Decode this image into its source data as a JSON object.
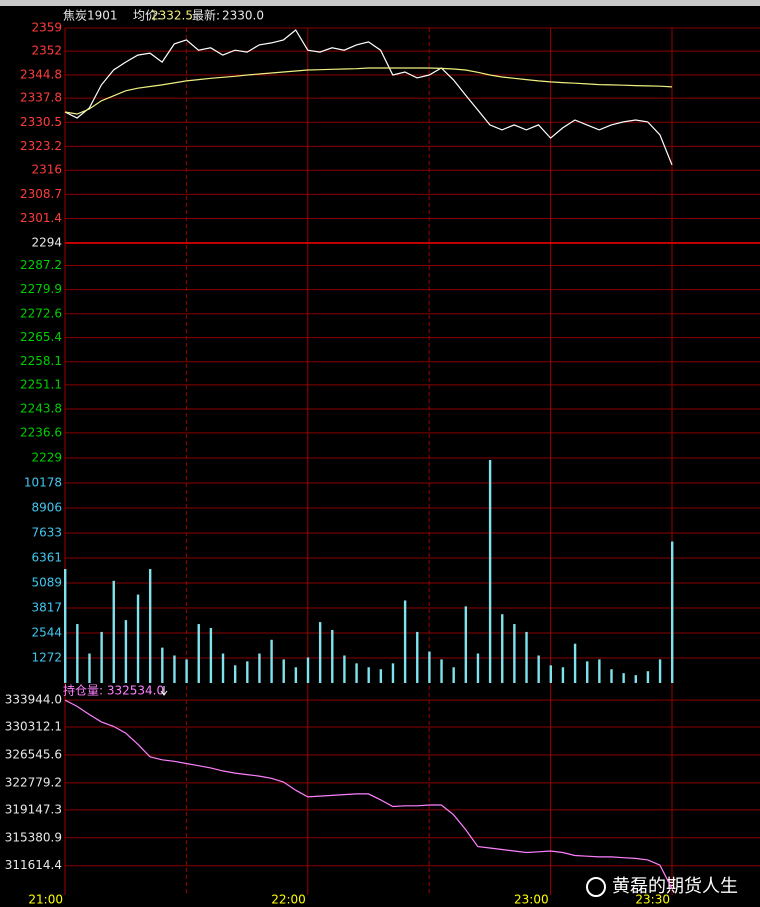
{
  "header": {
    "symbol": "焦炭1901",
    "avg_label": "均价:",
    "avg": "2332.5",
    "last_label": "最新:",
    "last": "2330.0"
  },
  "watermark": "黄磊的期货人生",
  "chart_data": [
    {
      "type": "line",
      "ylim": [
        2229,
        2359
      ],
      "yticks": [
        2359.0,
        2352.0,
        2344.8,
        2337.8,
        2330.5,
        2323.2,
        2316.0,
        2308.7,
        2301.4,
        2294.0,
        2287.2,
        2279.9,
        2272.6,
        2265.4,
        2258.1,
        2251.1,
        2243.8,
        2236.6,
        2229.0
      ],
      "tick_colors": [
        "#ff3c3c",
        "#e8e8e8",
        "#00d000"
      ],
      "x": [
        "21:00",
        "21:03",
        "21:06",
        "21:09",
        "21:12",
        "21:15",
        "21:18",
        "21:21",
        "21:24",
        "21:27",
        "21:30",
        "21:33",
        "21:36",
        "21:39",
        "21:42",
        "21:45",
        "21:48",
        "21:51",
        "21:54",
        "21:57",
        "22:00",
        "22:03",
        "22:06",
        "22:09",
        "22:12",
        "22:15",
        "22:18",
        "22:21",
        "22:24",
        "22:27",
        "22:30",
        "22:33",
        "22:36",
        "22:39",
        "22:42",
        "22:45",
        "22:48",
        "22:51",
        "22:54",
        "22:57",
        "23:00",
        "23:03",
        "23:06",
        "23:09",
        "23:12",
        "23:15",
        "23:18",
        "23:21",
        "23:24",
        "23:27",
        "23:30"
      ],
      "series": [
        {
          "color": "#ffffff",
          "values": [
            2333.6,
            2331.8,
            2334.8,
            2341.8,
            2346.3,
            2348.7,
            2350.8,
            2351.4,
            2348.7,
            2354.2,
            2355.4,
            2352.3,
            2353.0,
            2350.8,
            2352.3,
            2351.7,
            2353.9,
            2354.5,
            2355.4,
            2358.4,
            2352.3,
            2351.7,
            2353.0,
            2352.3,
            2353.9,
            2354.8,
            2352.3,
            2344.8,
            2345.7,
            2343.9,
            2344.8,
            2346.9,
            2343.3,
            2338.7,
            2334.2,
            2329.7,
            2328.2,
            2329.7,
            2328.2,
            2329.7,
            2325.7,
            2328.8,
            2331.2,
            2329.7,
            2328.2,
            2329.7,
            2330.6,
            2331.2,
            2330.6,
            2326.7,
            2317.6
          ]
        },
        {
          "color": "#f0f080",
          "values": [
            2333.6,
            2333.0,
            2334.5,
            2337.0,
            2338.5,
            2340.0,
            2340.8,
            2341.3,
            2341.8,
            2342.4,
            2343.0,
            2343.4,
            2343.8,
            2344.1,
            2344.4,
            2344.8,
            2345.1,
            2345.4,
            2345.7,
            2346.0,
            2346.3,
            2346.4,
            2346.5,
            2346.6,
            2346.7,
            2346.9,
            2346.9,
            2346.9,
            2346.9,
            2346.9,
            2346.9,
            2346.8,
            2346.6,
            2346.3,
            2345.6,
            2344.8,
            2344.2,
            2343.8,
            2343.4,
            2343.0,
            2342.7,
            2342.5,
            2342.3,
            2342.1,
            2341.9,
            2341.8,
            2341.7,
            2341.6,
            2341.5,
            2341.4,
            2341.2
          ]
        }
      ]
    },
    {
      "type": "bar",
      "ylim": [
        0,
        11450
      ],
      "yticks": [
        1272,
        2544,
        3817,
        5089,
        6361,
        7633,
        8906,
        10178
      ],
      "tick_colors": [
        "#40c8f0"
      ],
      "color": "#7fe3ee",
      "x": [
        "21:00",
        "21:03",
        "21:06",
        "21:09",
        "21:12",
        "21:15",
        "21:18",
        "21:21",
        "21:24",
        "21:27",
        "21:30",
        "21:33",
        "21:36",
        "21:39",
        "21:42",
        "21:45",
        "21:48",
        "21:51",
        "21:54",
        "21:57",
        "22:00",
        "22:03",
        "22:06",
        "22:09",
        "22:12",
        "22:15",
        "22:18",
        "22:21",
        "22:24",
        "22:27",
        "22:30",
        "22:33",
        "22:36",
        "22:39",
        "22:42",
        "22:45",
        "22:48",
        "22:51",
        "22:54",
        "22:57",
        "23:00",
        "23:03",
        "23:06",
        "23:09",
        "23:12",
        "23:15",
        "23:18",
        "23:21",
        "23:24",
        "23:27",
        "23:30"
      ],
      "values": [
        5800,
        3000,
        1500,
        2600,
        5200,
        3200,
        4500,
        5800,
        1800,
        1400,
        1200,
        3000,
        2800,
        1500,
        900,
        1100,
        1500,
        2200,
        1200,
        800,
        1300,
        3100,
        2700,
        1400,
        1000,
        800,
        700,
        1000,
        4200,
        2600,
        1600,
        1200,
        800,
        3900,
        1500,
        11350,
        3500,
        3000,
        2600,
        1400,
        900,
        800,
        2000,
        1100,
        1200,
        700,
        500,
        400,
        600,
        1200,
        7200
      ]
    },
    {
      "type": "line",
      "title": "持仓量: 332534.0",
      "ylim": [
        307670,
        335575
      ],
      "yticks": [
        {
          "value": 333944,
          "label": "333944.0"
        },
        330312.1,
        326545.6,
        322779.2,
        319147.3,
        315380.9,
        311614.4
      ],
      "tick_colors": [
        "#e8e8e8"
      ],
      "xticks": [
        "21:00",
        "22:00",
        "23:00",
        "23:30"
      ],
      "x": [
        "21:00",
        "21:03",
        "21:06",
        "21:09",
        "21:12",
        "21:15",
        "21:18",
        "21:21",
        "21:24",
        "21:27",
        "21:30",
        "21:33",
        "21:36",
        "21:39",
        "21:42",
        "21:45",
        "21:48",
        "21:51",
        "21:54",
        "21:57",
        "22:00",
        "22:03",
        "22:06",
        "22:09",
        "22:12",
        "22:15",
        "22:18",
        "22:21",
        "22:24",
        "22:27",
        "22:30",
        "22:33",
        "22:36",
        "22:39",
        "22:42",
        "22:45",
        "22:48",
        "22:51",
        "22:54",
        "22:57",
        "23:00",
        "23:03",
        "23:06",
        "23:09",
        "23:12",
        "23:15",
        "23:18",
        "23:21",
        "23:24",
        "23:27",
        "23:30"
      ],
      "series": [
        {
          "color": "#ff80ff",
          "values": [
            333944,
            333100,
            332000,
            331000,
            330400,
            329500,
            328000,
            326300,
            325900,
            325700,
            325400,
            325100,
            324800,
            324400,
            324100,
            323900,
            323700,
            323400,
            322900,
            321800,
            320900,
            321000,
            321100,
            321200,
            321300,
            321300,
            320500,
            319600,
            319700,
            319700,
            319800,
            319800,
            318500,
            316500,
            314200,
            314000,
            313800,
            313600,
            313400,
            313500,
            313600,
            313400,
            313000,
            312900,
            312800,
            312800,
            312700,
            312600,
            312400,
            311700,
            308500
          ]
        }
      ]
    }
  ]
}
